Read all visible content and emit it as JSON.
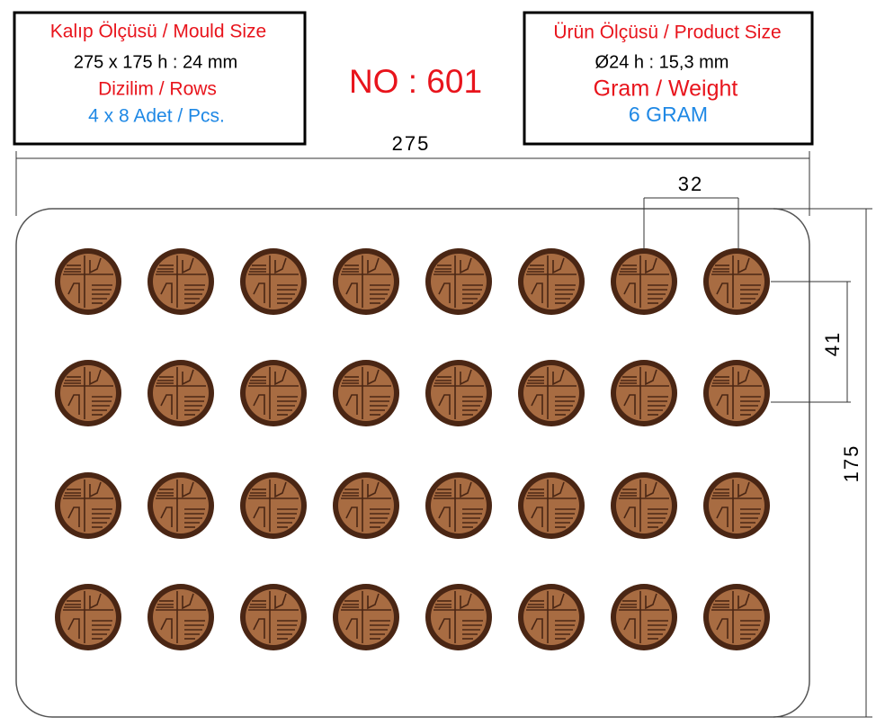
{
  "left_box": {
    "lines": [
      "Kalıp Ölçüsü / Mould Size",
      "275 x 175 h : 24 mm",
      "Dizilim / Rows",
      "4 x 8 Adet / Pcs."
    ]
  },
  "title": "NO : 601",
  "right_box": {
    "lines": [
      "Ürün Ölçüsü / Product Size",
      "Ø24 h : 15,3 mm",
      "Gram / Weight",
      "6 GRAM"
    ]
  },
  "dimensions": {
    "width": "275",
    "pitch_x": "32",
    "pitch_y": "41",
    "height": "175"
  }
}
